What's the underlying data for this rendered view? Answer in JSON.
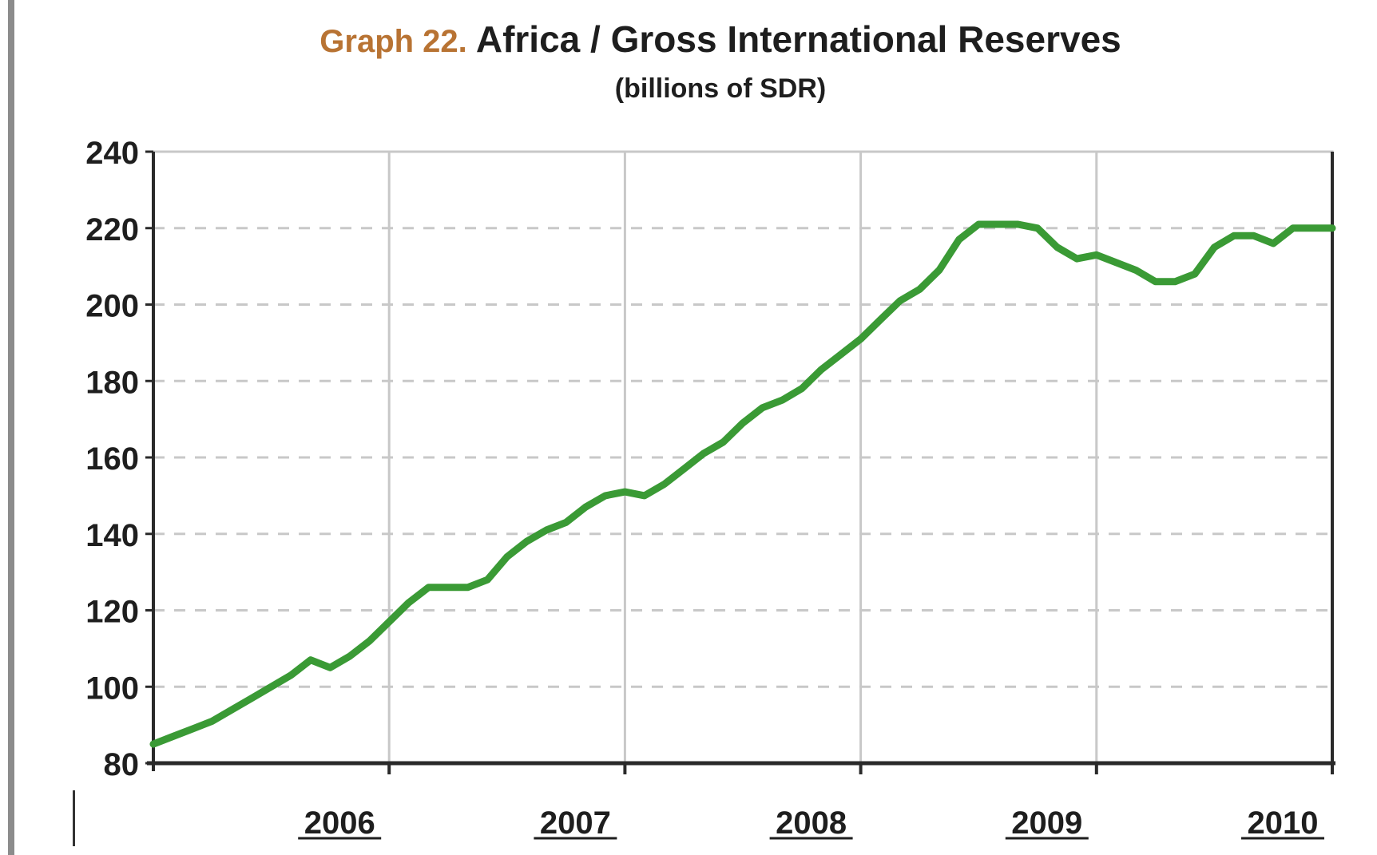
{
  "title": {
    "prefix": "Graph 22.",
    "main": "Africa / Gross International Reserves",
    "subtitle": "(billions of SDR)"
  },
  "colors": {
    "line": "#3a9a35",
    "title_prefix": "#b87333",
    "grid": "#c8c8c8",
    "frame": "#2a2a2a"
  },
  "chart_data": {
    "type": "line",
    "title": "Africa / Gross International Reserves",
    "subtitle": "(billions of SDR)",
    "xlabel": "",
    "ylabel": "",
    "ylim": [
      80,
      240
    ],
    "xlim": [
      2005.0,
      2010.0
    ],
    "yticks": [
      80,
      100,
      120,
      140,
      160,
      180,
      200,
      220,
      240
    ],
    "x_tick_labels": [
      {
        "label": "2006",
        "x": 2006.0
      },
      {
        "label": "2007",
        "x": 2007.0
      },
      {
        "label": "2008",
        "x": 2008.0
      },
      {
        "label": "2009",
        "x": 2009.0
      },
      {
        "label": "2010",
        "x": 2010.0
      }
    ],
    "grid": true,
    "legend": "none",
    "series": [
      {
        "x": [
          2005.0,
          2005.083,
          2005.167,
          2005.25,
          2005.333,
          2005.417,
          2005.5,
          2005.583,
          2005.667,
          2005.75,
          2005.833,
          2005.917,
          2006.0,
          2006.083,
          2006.167,
          2006.25,
          2006.333,
          2006.417,
          2006.5,
          2006.583,
          2006.667,
          2006.75,
          2006.833,
          2006.917,
          2007.0,
          2007.083,
          2007.167,
          2007.25,
          2007.333,
          2007.417,
          2007.5,
          2007.583,
          2007.667,
          2007.75,
          2007.833,
          2007.917,
          2008.0,
          2008.083,
          2008.167,
          2008.25,
          2008.333,
          2008.417,
          2008.5,
          2008.583,
          2008.667,
          2008.75,
          2008.833,
          2008.917,
          2009.0,
          2009.083,
          2009.167,
          2009.25,
          2009.333,
          2009.417,
          2009.5,
          2009.583,
          2009.667,
          2009.75,
          2009.833,
          2009.917,
          2010.0
        ],
        "values": [
          85,
          87,
          89,
          91,
          94,
          97,
          100,
          103,
          107,
          105,
          108,
          112,
          117,
          122,
          126,
          126,
          126,
          128,
          134,
          138,
          141,
          143,
          147,
          150,
          151,
          150,
          153,
          157,
          161,
          164,
          169,
          173,
          175,
          178,
          183,
          187,
          191,
          196,
          201,
          204,
          209,
          217,
          221,
          221,
          221,
          220,
          215,
          212,
          213,
          211,
          209,
          206,
          206,
          208,
          215,
          218,
          218,
          216,
          220,
          220,
          220
        ]
      }
    ]
  }
}
